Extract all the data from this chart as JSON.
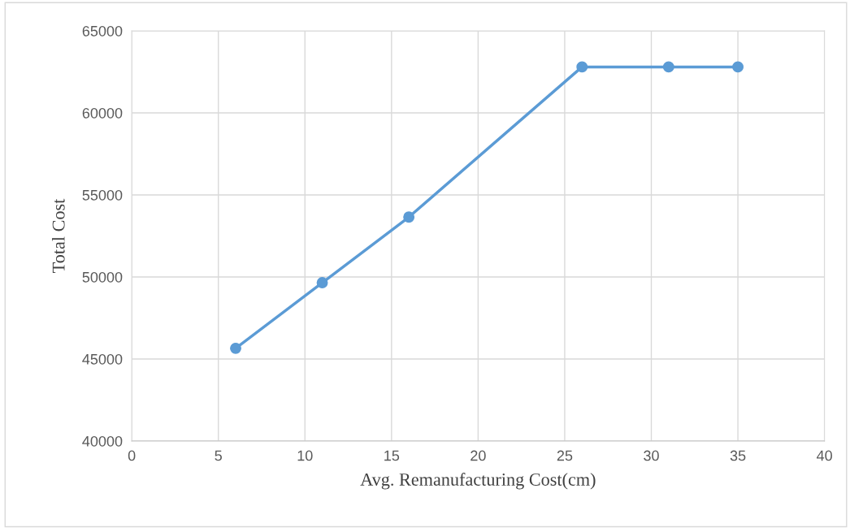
{
  "chart_data": {
    "type": "line",
    "xlabel": "Avg. Remanufacturing Cost(cm)",
    "ylabel": "Total Cost",
    "x": [
      6,
      11,
      16,
      26,
      31,
      35
    ],
    "series": [
      {
        "color": "#5b9bd5",
        "values": [
          45650,
          49650,
          53650,
          62800,
          62800,
          62800
        ]
      }
    ],
    "xlim": [
      0,
      40
    ],
    "xticks": [
      0,
      5,
      10,
      15,
      20,
      25,
      30,
      35,
      40
    ],
    "ylim": [
      40000,
      65000
    ],
    "yticks": [
      40000,
      45000,
      50000,
      55000,
      60000,
      65000
    ],
    "grid": true,
    "marker": "circle",
    "line_style": "solid",
    "legend": false
  }
}
